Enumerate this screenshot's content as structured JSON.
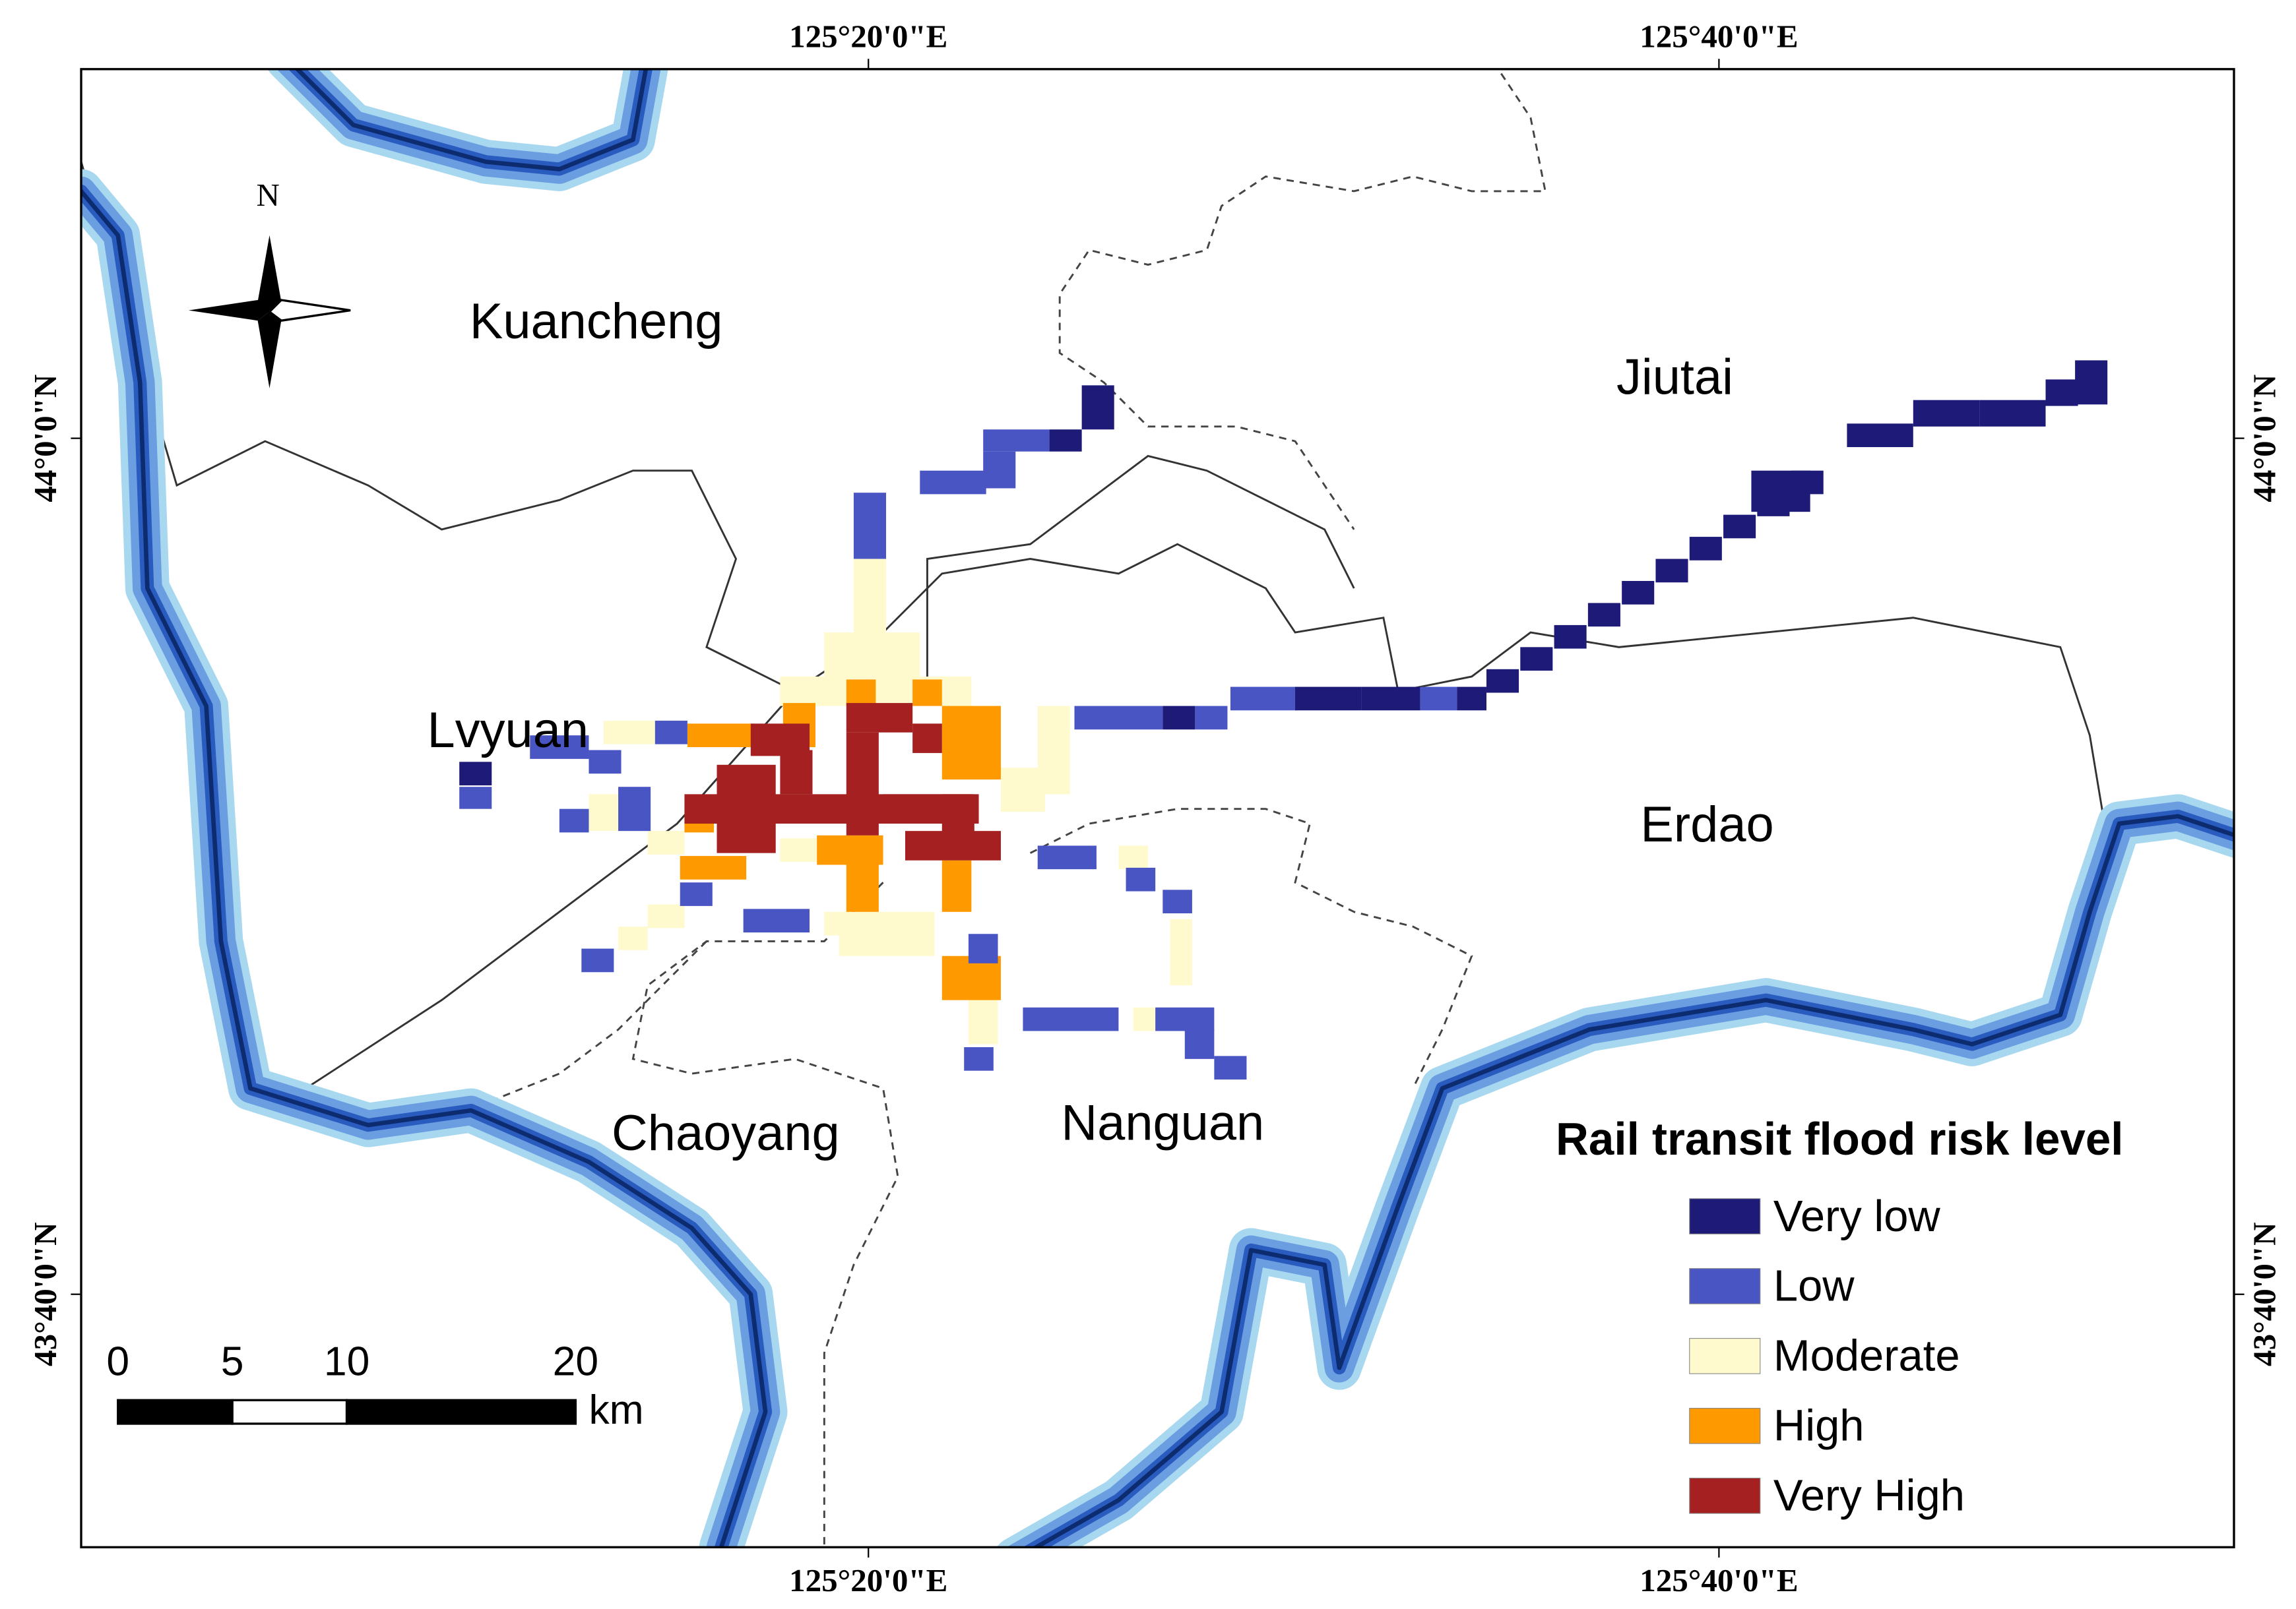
{
  "map": {
    "coordinate_labels": {
      "top": [
        "125°20'0\"E",
        "125°40'0\"E"
      ],
      "bottom": [
        "125°20'0\"E",
        "125°40'0\"E"
      ],
      "left": [
        "44°0'0\"N",
        "43°40'0\"N"
      ],
      "right": [
        "44°0'0\"N",
        "43°40'0\"N"
      ]
    },
    "north_arrow": "N",
    "districts": [
      "Kuancheng",
      "Jiutai",
      "Lvyuan",
      "Erdao",
      "Chaoyang",
      "Nanguan"
    ],
    "legend": {
      "title": "Rail transit flood risk level",
      "items": [
        {
          "label": "Very low",
          "color": "#1e1a78"
        },
        {
          "label": "Low",
          "color": "#4a55c4"
        },
        {
          "label": "Moderate",
          "color": "#fffacd"
        },
        {
          "label": "High",
          "color": "#ff9900"
        },
        {
          "label": "Very High",
          "color": "#a52020"
        }
      ]
    },
    "scale_bar": {
      "ticks": [
        0,
        5,
        10,
        20
      ],
      "unit": "km"
    }
  }
}
